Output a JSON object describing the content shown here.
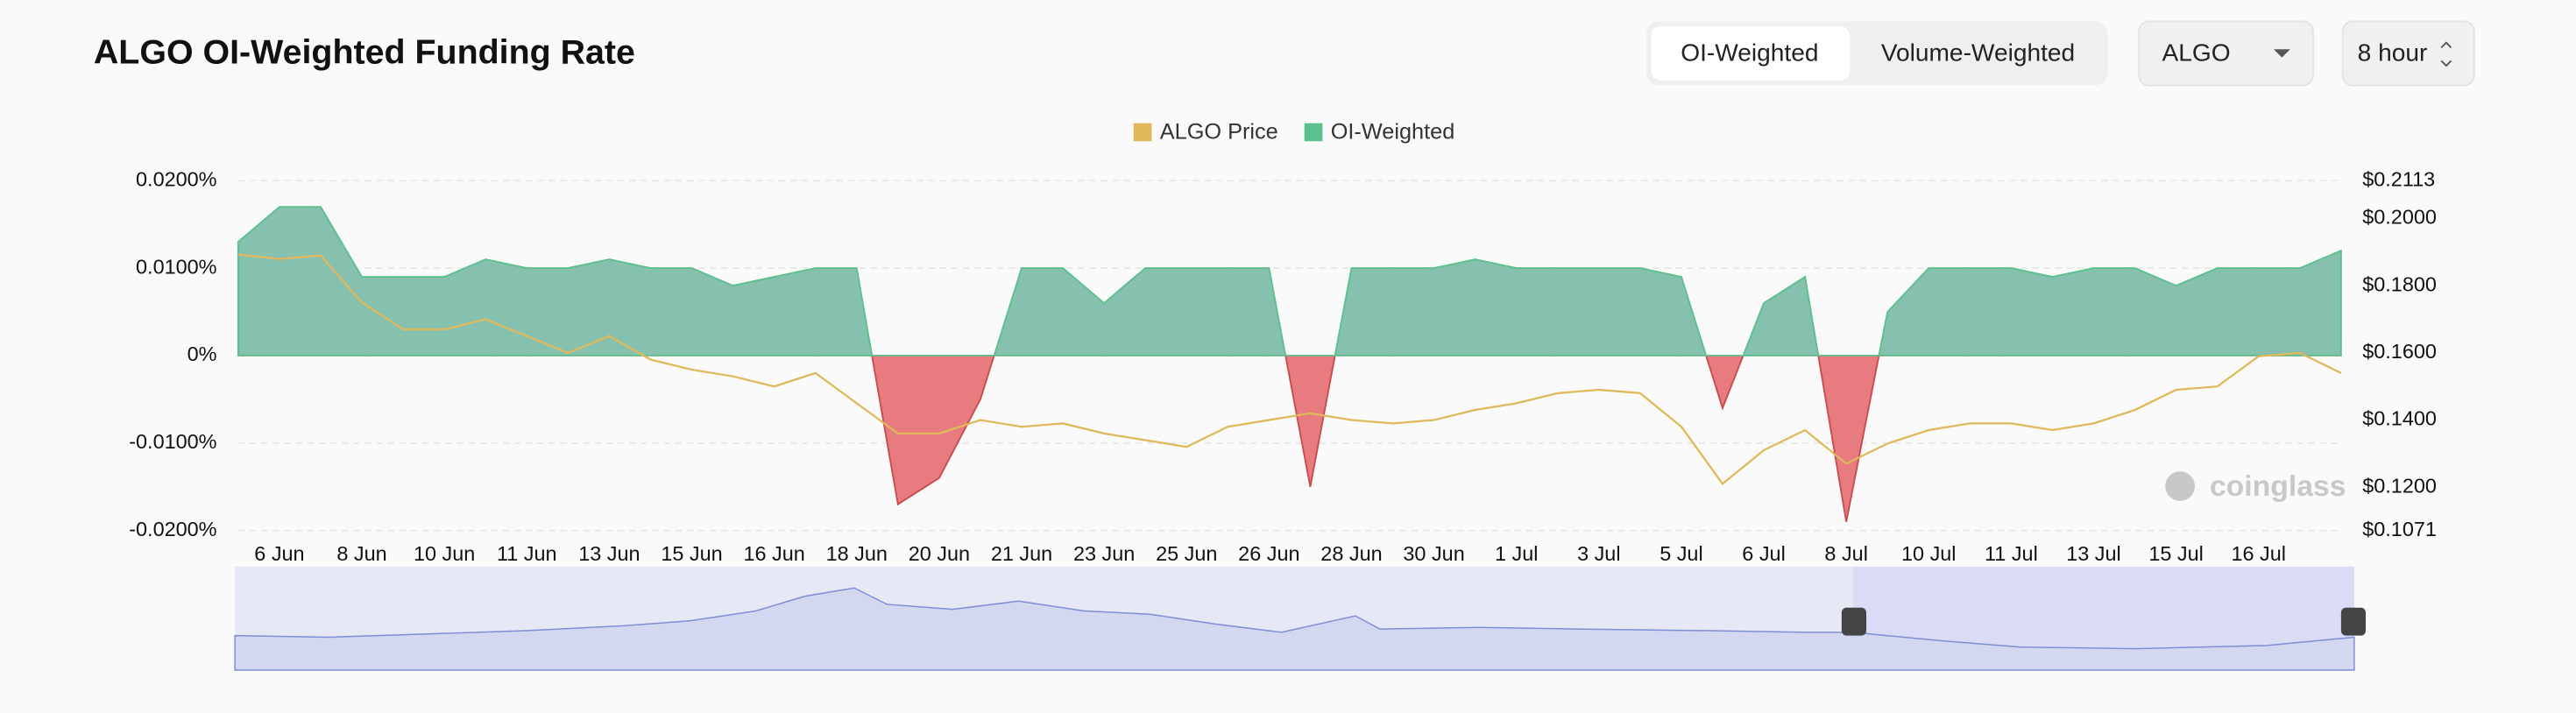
{
  "header": {
    "title": "ALGO OI-Weighted Funding Rate",
    "tabs": [
      "OI-Weighted",
      "Volume-Weighted"
    ],
    "symbol": "ALGO",
    "interval": "8 hour"
  },
  "chart_data": {
    "type": "area",
    "categories": [
      null,
      "6 Jun",
      null,
      "8 Jun",
      null,
      "10 Jun",
      null,
      "11 Jun",
      null,
      "13 Jun",
      null,
      "15 Jun",
      null,
      "16 Jun",
      null,
      "18 Jun",
      null,
      "20 Jun",
      null,
      "21 Jun",
      null,
      "23 Jun",
      null,
      "25 Jun",
      null,
      "26 Jun",
      null,
      "28 Jun",
      null,
      "30 Jun",
      null,
      "1 Jul",
      null,
      "3 Jul",
      null,
      "5 Jul",
      null,
      "6 Jul",
      null,
      "8 Jul",
      null,
      "10 Jul",
      null,
      "11 Jul",
      null,
      "13 Jul",
      null,
      "15 Jul",
      null,
      "16 Jul",
      null,
      null
    ],
    "series": [
      {
        "name": "ALGO Price",
        "color": "#e0b85a",
        "axis": "y2",
        "values": [
          0.1893,
          0.188,
          0.189,
          0.175,
          0.167,
          0.167,
          0.17,
          0.165,
          0.16,
          0.165,
          0.158,
          0.155,
          0.153,
          0.15,
          0.154,
          0.145,
          0.136,
          0.136,
          0.14,
          0.138,
          0.139,
          0.136,
          0.134,
          0.132,
          0.138,
          0.14,
          0.142,
          0.14,
          0.139,
          0.14,
          0.143,
          0.145,
          0.148,
          0.149,
          0.148,
          0.138,
          0.121,
          0.131,
          0.137,
          0.127,
          0.133,
          0.137,
          0.139,
          0.139,
          0.137,
          0.139,
          0.143,
          0.149,
          0.15,
          0.159,
          0.16,
          0.154
        ]
      },
      {
        "name": "OI-Weighted",
        "color": "#5cc08c",
        "fill": "#86c1b0",
        "negative_fill": "#e77b7f",
        "values": [
          0.013,
          0.017,
          0.017,
          0.009,
          0.009,
          0.009,
          0.011,
          0.01,
          0.01,
          0.011,
          0.01,
          0.01,
          0.008,
          0.009,
          0.01,
          0.01,
          -0.017,
          -0.014,
          -0.005,
          0.01,
          0.01,
          0.006,
          0.01,
          0.01,
          0.01,
          0.01,
          -0.015,
          0.01,
          0.01,
          0.01,
          0.011,
          0.01,
          0.01,
          0.01,
          0.01,
          0.009,
          -0.006,
          0.006,
          0.009,
          -0.019,
          0.005,
          0.01,
          0.01,
          0.01,
          0.009,
          0.01,
          0.01,
          0.008,
          0.01,
          0.01,
          0.01,
          0.012
        ]
      }
    ],
    "ylim": [
      -0.02,
      0.02
    ],
    "yticks": [
      {
        "value": -0.02,
        "label": "-0.0200%"
      },
      {
        "value": -0.01,
        "label": "-0.0100%"
      },
      {
        "value": 0,
        "label": "0%"
      },
      {
        "value": 0.01,
        "label": "0.0100%"
      },
      {
        "value": 0.02,
        "label": "0.0200%"
      }
    ],
    "y2lim": [
      0.1071,
      0.2113
    ],
    "y2ticks": [
      {
        "value": 0.1071,
        "label": "$0.1071"
      },
      {
        "value": 0.12,
        "label": "$0.1200"
      },
      {
        "value": 0.14,
        "label": "$0.1400"
      },
      {
        "value": 0.16,
        "label": "$0.1600"
      },
      {
        "value": 0.18,
        "label": "$0.1800"
      },
      {
        "value": 0.2,
        "label": "$0.2000"
      },
      {
        "value": 0.2113,
        "label": "$0.2113"
      }
    ],
    "grid": true,
    "legend": "top",
    "watermark": "coinglass"
  }
}
